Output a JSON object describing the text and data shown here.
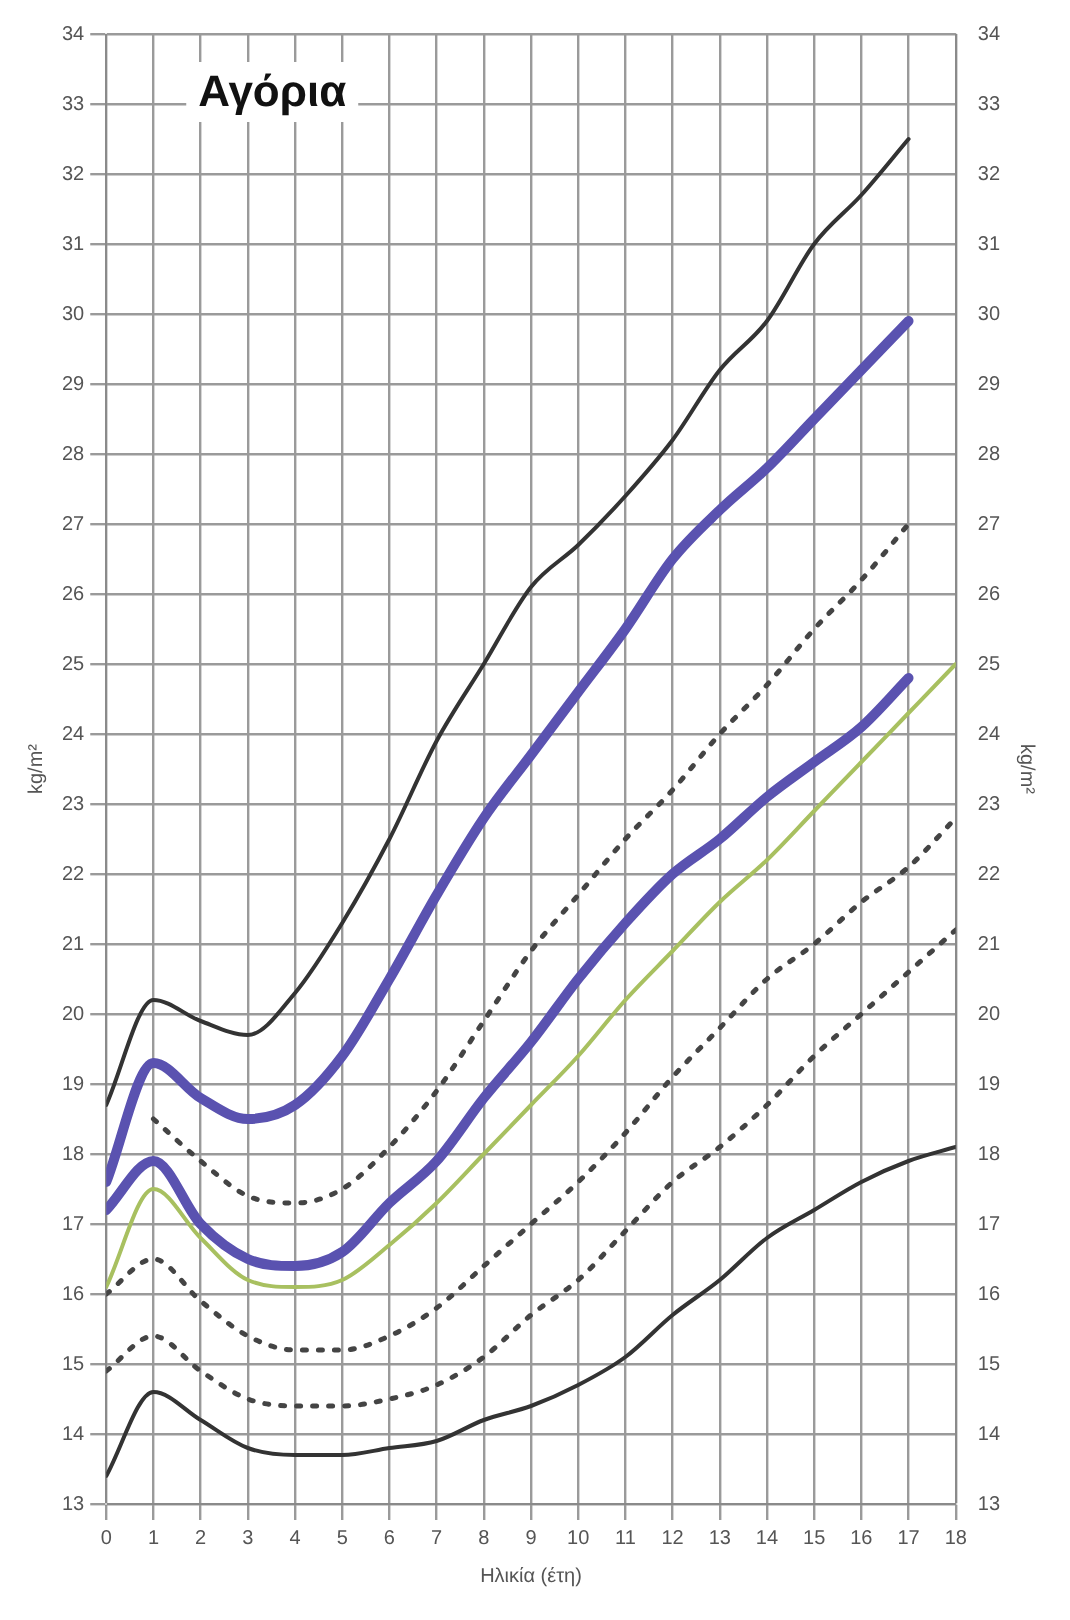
{
  "chart_data": {
    "type": "line",
    "title": "Αγόρια",
    "xlabel": "Ηλικία (έτη)",
    "ylabel": "kg/m²",
    "y2label": "kg/m²",
    "x": [
      0,
      1,
      2,
      3,
      4,
      5,
      6,
      7,
      8,
      9,
      10,
      11,
      12,
      13,
      14,
      15,
      16,
      17,
      18
    ],
    "xlim": [
      0,
      18
    ],
    "xticks": [
      0,
      1,
      2,
      3,
      4,
      5,
      6,
      7,
      8,
      9,
      10,
      11,
      12,
      13,
      14,
      15,
      16,
      17,
      18
    ],
    "ylim": [
      13,
      34
    ],
    "yticks": [
      13,
      14,
      15,
      16,
      17,
      18,
      19,
      20,
      21,
      22,
      23,
      24,
      25,
      26,
      27,
      28,
      29,
      30,
      31,
      32,
      33,
      34
    ],
    "y2lim": [
      13,
      34
    ],
    "y2ticks": [
      13,
      14,
      15,
      16,
      17,
      18,
      19,
      20,
      21,
      22,
      23,
      24,
      25,
      26,
      27,
      28,
      29,
      30,
      31,
      32,
      33,
      34
    ],
    "grid": true,
    "legend": false,
    "marker": "none",
    "series": [
      {
        "color": "#333333",
        "line_style": "solid",
        "values": [
          18.7,
          20.2,
          19.9,
          19.7,
          20.3,
          21.3,
          22.5,
          23.9,
          25.0,
          26.1,
          26.7,
          27.4,
          28.2,
          29.2,
          29.9,
          31.0,
          31.7,
          32.5,
          null
        ]
      },
      {
        "color": "#5a52b0",
        "line_style": "solid",
        "values": [
          17.6,
          19.3,
          18.8,
          18.5,
          18.7,
          19.4,
          20.5,
          21.7,
          22.8,
          23.7,
          24.6,
          25.5,
          26.5,
          27.2,
          27.8,
          28.5,
          29.2,
          29.9,
          null
        ]
      },
      {
        "color": "#444444",
        "line_style": "dotted",
        "values": [
          null,
          18.5,
          17.9,
          17.4,
          17.3,
          17.5,
          18.1,
          18.9,
          19.9,
          20.9,
          21.7,
          22.5,
          23.2,
          24.0,
          24.7,
          25.5,
          26.2,
          27.0,
          null
        ]
      },
      {
        "color": "#5a52b0",
        "line_style": "solid",
        "values": [
          17.2,
          17.9,
          17.0,
          16.5,
          16.4,
          16.6,
          17.3,
          17.9,
          18.8,
          19.6,
          20.5,
          21.3,
          22.0,
          22.5,
          23.1,
          23.6,
          24.1,
          24.8,
          null
        ]
      },
      {
        "color": "#a8c060",
        "line_style": "solid",
        "values": [
          16.1,
          17.5,
          16.8,
          16.2,
          16.1,
          16.2,
          16.7,
          17.3,
          18.0,
          18.7,
          19.4,
          20.2,
          20.9,
          21.6,
          22.2,
          22.9,
          23.6,
          24.3,
          25.0
        ]
      },
      {
        "color": "#444444",
        "line_style": "dotted",
        "values": [
          16.0,
          16.5,
          15.9,
          15.4,
          15.2,
          15.2,
          15.4,
          15.8,
          16.4,
          17.0,
          17.6,
          18.3,
          19.1,
          19.8,
          20.5,
          21.0,
          21.6,
          22.1,
          22.8
        ]
      },
      {
        "color": "#444444",
        "line_style": "dotted",
        "values": [
          14.9,
          15.4,
          14.9,
          14.5,
          14.4,
          14.4,
          14.5,
          14.7,
          15.1,
          15.7,
          16.2,
          16.9,
          17.6,
          18.1,
          18.7,
          19.4,
          20.0,
          20.6,
          21.2
        ]
      },
      {
        "color": "#333333",
        "line_style": "solid",
        "values": [
          13.4,
          14.6,
          14.2,
          13.8,
          13.7,
          13.7,
          13.8,
          13.9,
          14.2,
          14.4,
          14.7,
          15.1,
          15.7,
          16.2,
          16.8,
          17.2,
          17.6,
          17.9,
          18.1
        ]
      }
    ]
  }
}
